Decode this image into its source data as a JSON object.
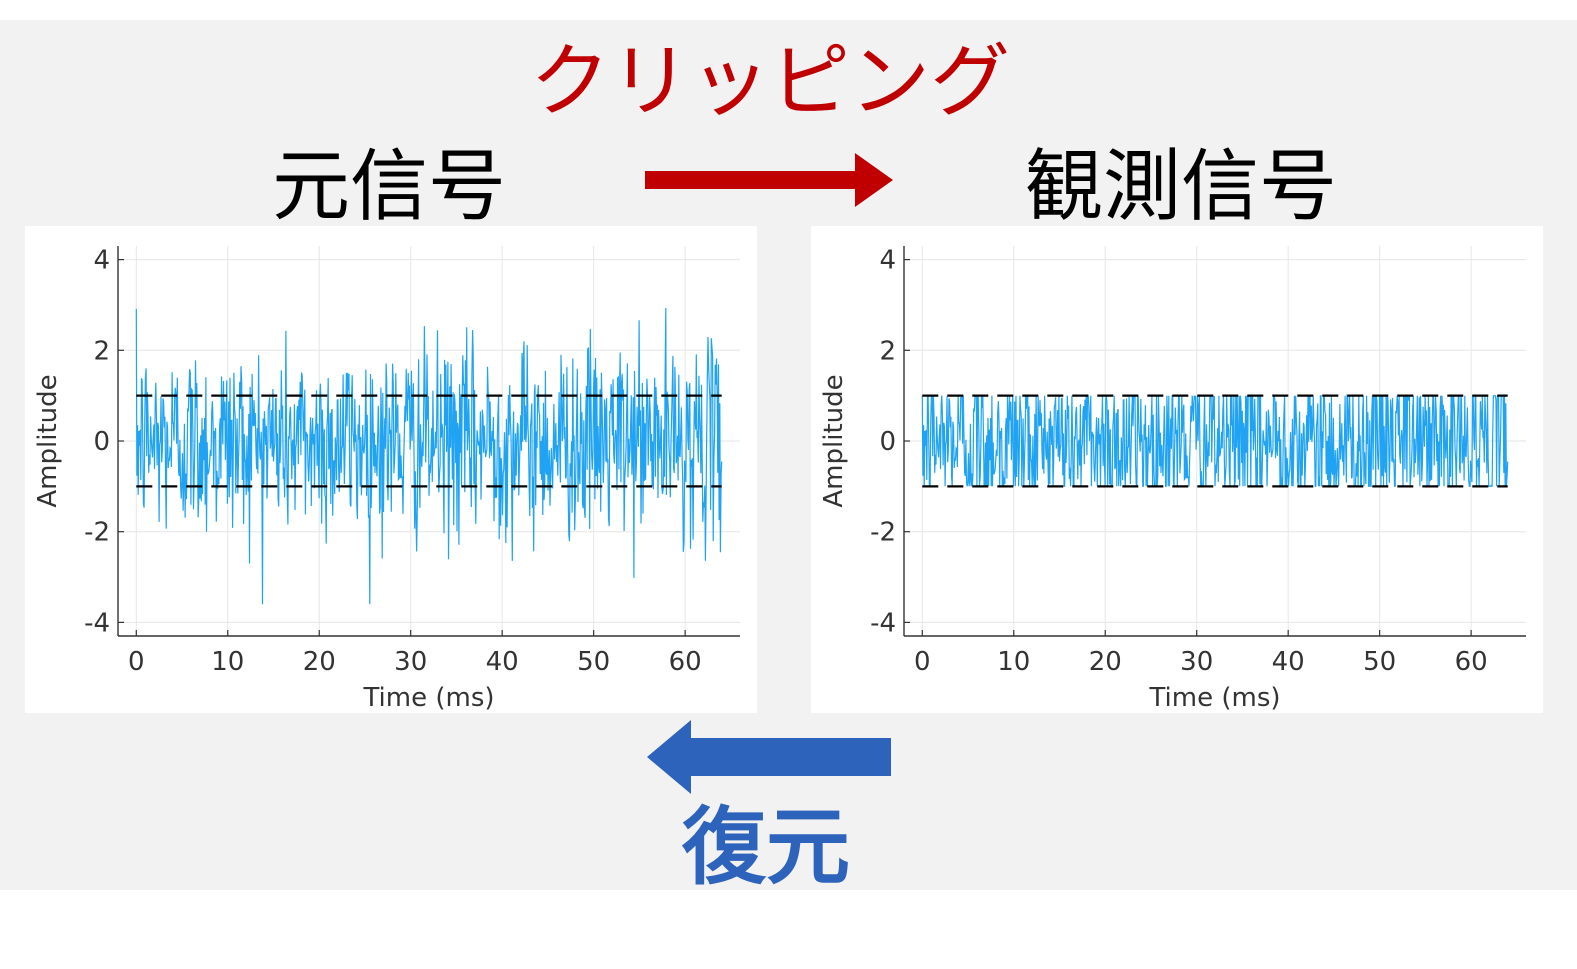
{
  "slide": {
    "clipping_label": "クリッピング",
    "original_title": "元信号",
    "observed_title": "観測信号",
    "restore_label": "復元",
    "colors": {
      "clipping": "#c00000",
      "restore": "#2e63bb",
      "signal": "#1fa3f2",
      "threshold": "#000000",
      "background": "#f2f2f2"
    },
    "icons": [
      "arrow-right-icon",
      "arrow-left-icon"
    ]
  },
  "chart_data": [
    {
      "type": "line",
      "title": "",
      "xlabel": "Time (ms)",
      "ylabel": "Amplitude",
      "xlim": [
        -2,
        66
      ],
      "ylim": [
        -4.3,
        4.3
      ],
      "xticks": [
        0,
        10,
        20,
        30,
        40,
        50,
        60
      ],
      "yticks": [
        -4,
        -2,
        0,
        2,
        4
      ],
      "grid": true,
      "series": [
        {
          "name": "",
          "x_start": 0,
          "x_end": 64,
          "min": -3.6,
          "max": 3.4,
          "style": "noise",
          "clipped": false
        },
        {
          "name": "",
          "x": [
            0,
            64
          ],
          "values": [
            1,
            1
          ],
          "style": "dashed"
        },
        {
          "name": "",
          "x": [
            0,
            64
          ],
          "values": [
            -1,
            -1
          ],
          "style": "dashed"
        }
      ]
    },
    {
      "type": "line",
      "title": "",
      "xlabel": "Time (ms)",
      "ylabel": "Amplitude",
      "xlim": [
        -2,
        66
      ],
      "ylim": [
        -4.3,
        4.3
      ],
      "xticks": [
        0,
        10,
        20,
        30,
        40,
        50,
        60
      ],
      "yticks": [
        -4,
        -2,
        0,
        2,
        4
      ],
      "grid": true,
      "series": [
        {
          "name": "",
          "x_start": 0,
          "x_end": 64,
          "min": -1,
          "max": 1,
          "style": "noise",
          "clipped": true
        },
        {
          "name": "",
          "x": [
            0,
            64
          ],
          "values": [
            1,
            1
          ],
          "style": "dashed"
        },
        {
          "name": "",
          "x": [
            0,
            64
          ],
          "values": [
            -1,
            -1
          ],
          "style": "dashed"
        }
      ]
    }
  ]
}
